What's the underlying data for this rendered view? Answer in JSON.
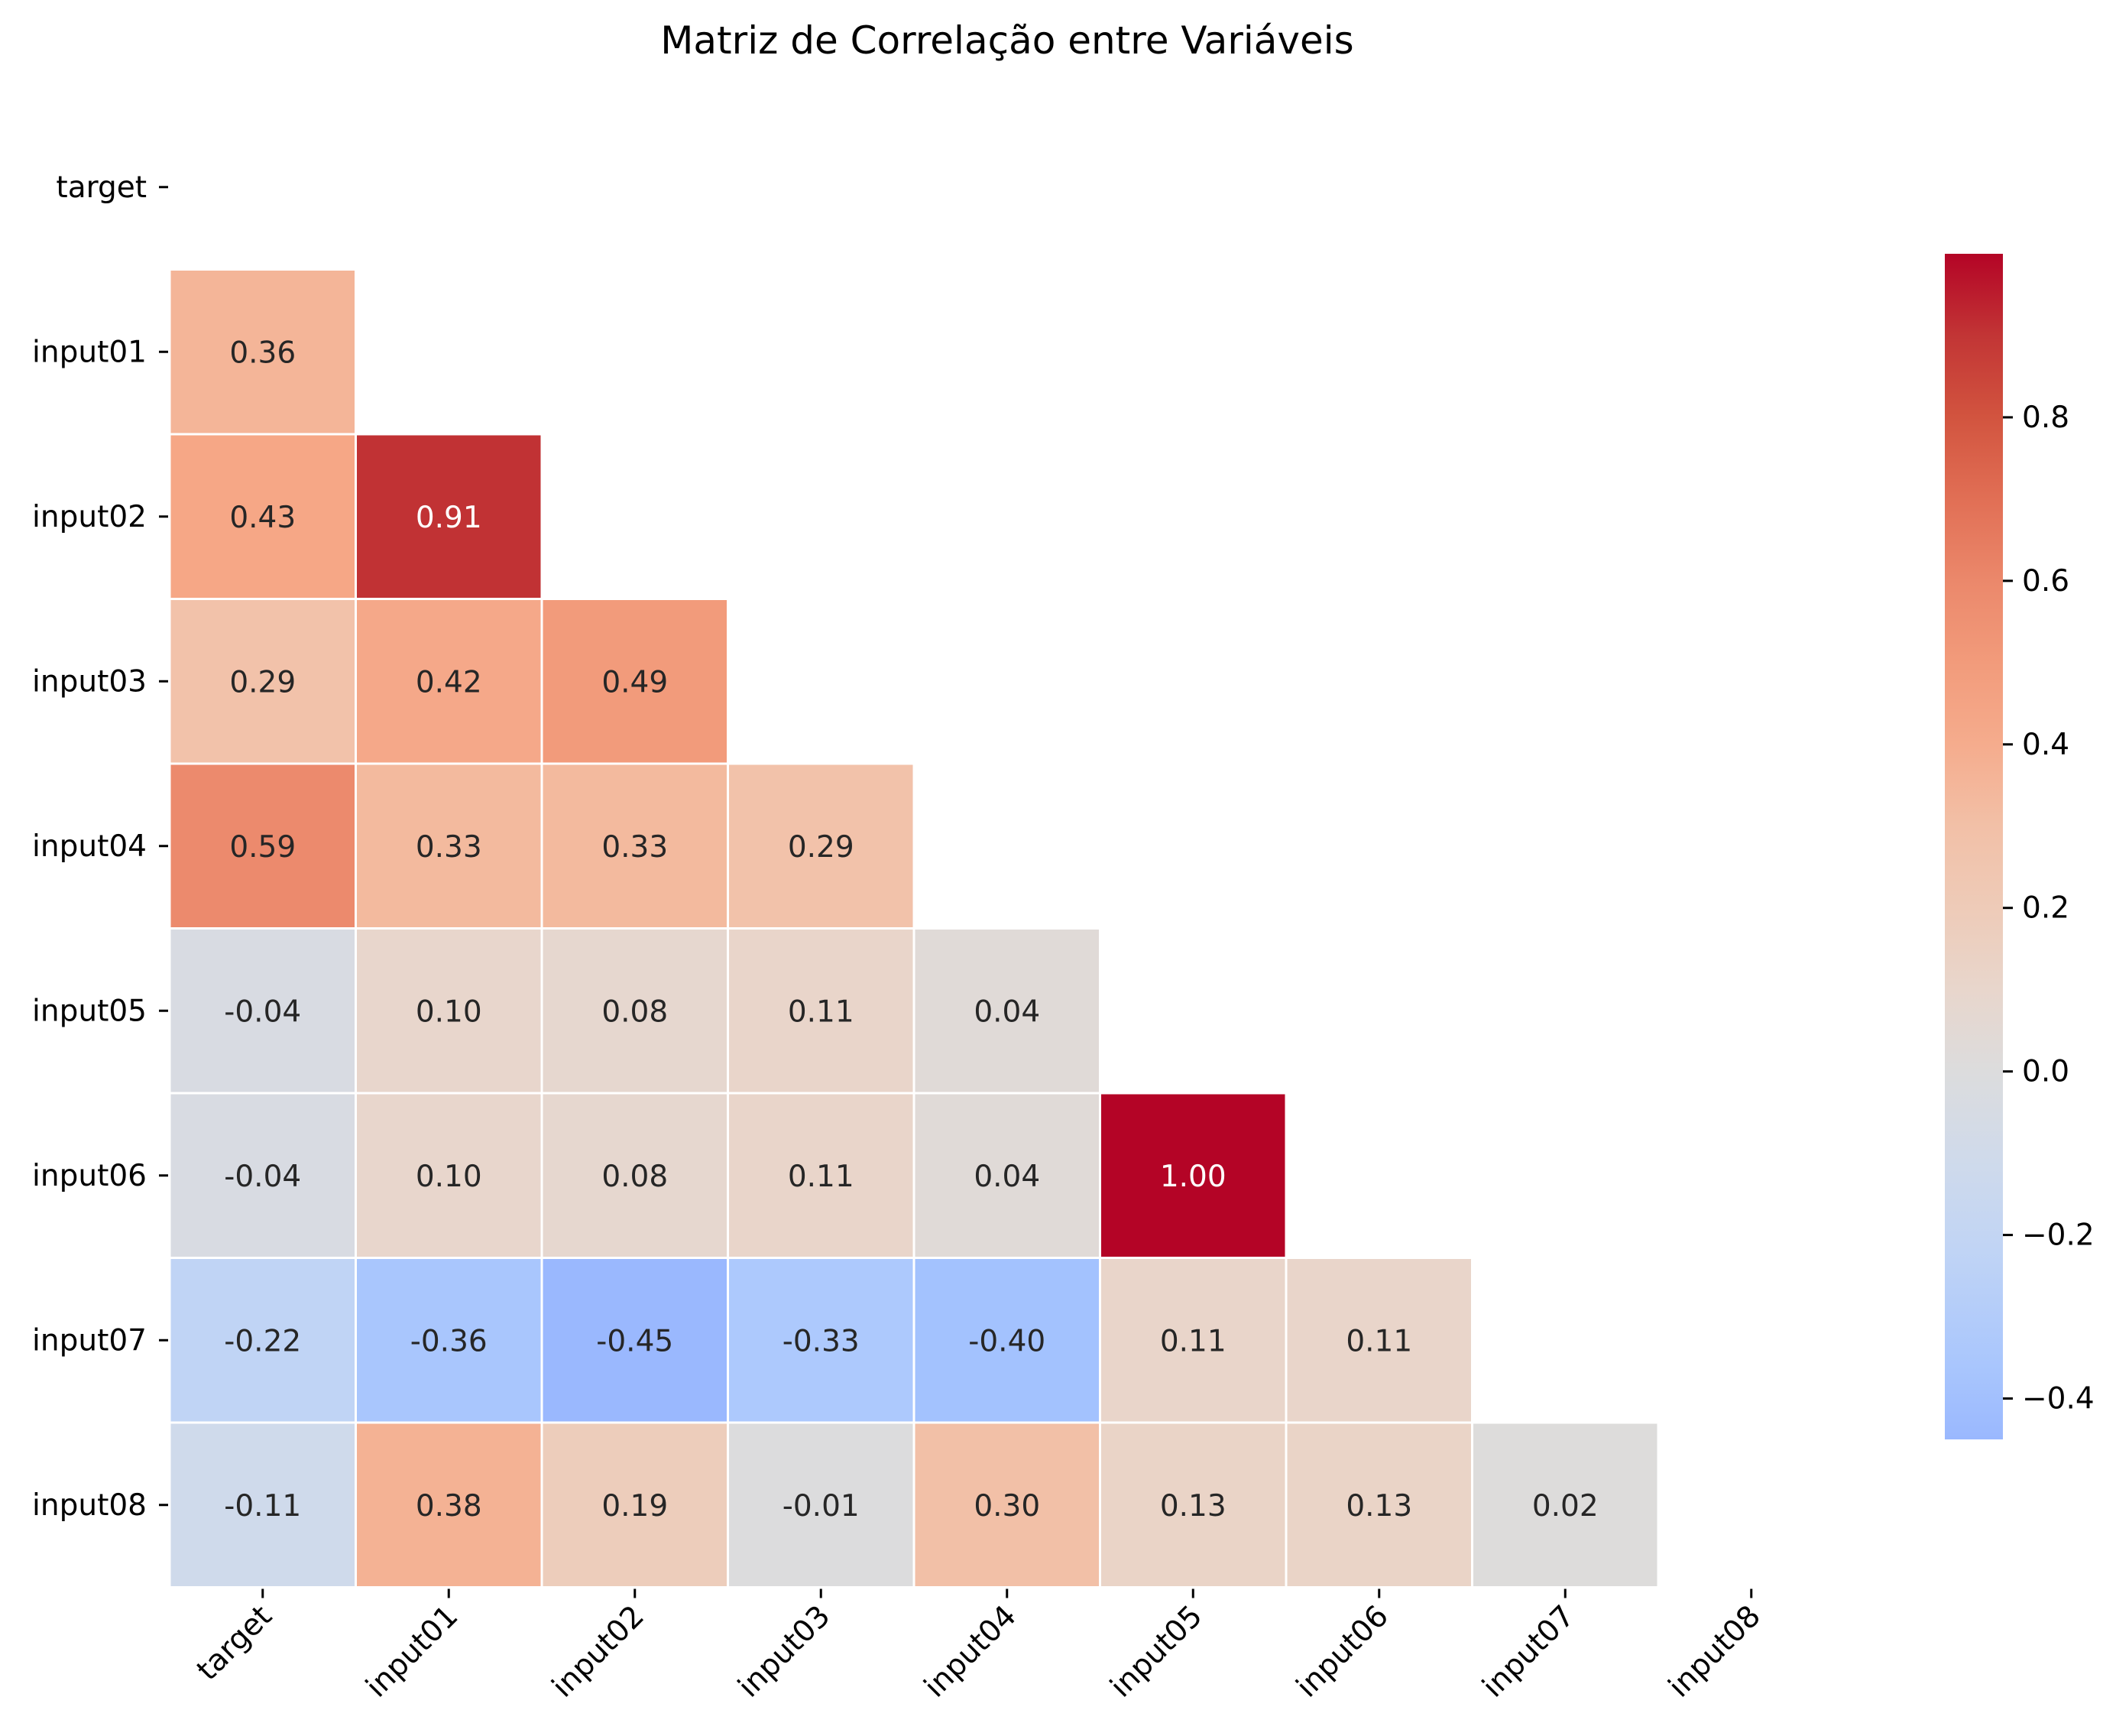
{
  "chart_data": {
    "type": "heatmap",
    "title": "Matriz de Correlação entre Variáveis",
    "xlabel": "",
    "ylabel": "",
    "categories": [
      "target",
      "input01",
      "input02",
      "input03",
      "input04",
      "input05",
      "input06",
      "input07",
      "input08"
    ],
    "mask": "upper-triangle-including-diagonal",
    "colormap": "coolwarm",
    "cells": [
      {
        "row": 1,
        "col": 0,
        "value": 0.36,
        "label": "0.36",
        "color": "#f4b598"
      },
      {
        "row": 2,
        "col": 0,
        "value": 0.43,
        "label": "0.43",
        "color": "#f6a786"
      },
      {
        "row": 2,
        "col": 1,
        "value": 0.91,
        "label": "0.91",
        "color": "#c13234"
      },
      {
        "row": 3,
        "col": 0,
        "value": 0.29,
        "label": "0.29",
        "color": "#f2c2aa"
      },
      {
        "row": 3,
        "col": 1,
        "value": 0.42,
        "label": "0.42",
        "color": "#f5a889"
      },
      {
        "row": 3,
        "col": 2,
        "value": 0.49,
        "label": "0.49",
        "color": "#f29b7b"
      },
      {
        "row": 4,
        "col": 0,
        "value": 0.59,
        "label": "0.59",
        "color": "#ec8a6d"
      },
      {
        "row": 4,
        "col": 1,
        "value": 0.33,
        "label": "0.33",
        "color": "#f3ba9e"
      },
      {
        "row": 4,
        "col": 2,
        "value": 0.33,
        "label": "0.33",
        "color": "#f3ba9e"
      },
      {
        "row": 4,
        "col": 3,
        "value": 0.29,
        "label": "0.29",
        "color": "#f2c2aa"
      },
      {
        "row": 5,
        "col": 0,
        "value": -0.04,
        "label": "-0.04",
        "color": "#d8dbe2"
      },
      {
        "row": 5,
        "col": 1,
        "value": 0.1,
        "label": "0.10",
        "color": "#e8d6cc"
      },
      {
        "row": 5,
        "col": 2,
        "value": 0.08,
        "label": "0.08",
        "color": "#e6d7cf"
      },
      {
        "row": 5,
        "col": 3,
        "value": 0.11,
        "label": "0.11",
        "color": "#e9d5ca"
      },
      {
        "row": 5,
        "col": 4,
        "value": 0.04,
        "label": "0.04",
        "color": "#e0dad7"
      },
      {
        "row": 6,
        "col": 0,
        "value": -0.04,
        "label": "-0.04",
        "color": "#d8dbe2"
      },
      {
        "row": 6,
        "col": 1,
        "value": 0.1,
        "label": "0.10",
        "color": "#e8d6cc"
      },
      {
        "row": 6,
        "col": 2,
        "value": 0.08,
        "label": "0.08",
        "color": "#e6d7cf"
      },
      {
        "row": 6,
        "col": 3,
        "value": 0.11,
        "label": "0.11",
        "color": "#e9d5ca"
      },
      {
        "row": 6,
        "col": 4,
        "value": 0.04,
        "label": "0.04",
        "color": "#e0dad7"
      },
      {
        "row": 6,
        "col": 5,
        "value": 1.0,
        "label": "1.00",
        "color": "#b40426"
      },
      {
        "row": 7,
        "col": 0,
        "value": -0.22,
        "label": "-0.22",
        "color": "#c0d4f5"
      },
      {
        "row": 7,
        "col": 1,
        "value": -0.36,
        "label": "-0.36",
        "color": "#a9c6fd"
      },
      {
        "row": 7,
        "col": 2,
        "value": -0.45,
        "label": "-0.45",
        "color": "#9ab8fe"
      },
      {
        "row": 7,
        "col": 3,
        "value": -0.33,
        "label": "-0.33",
        "color": "#adc9fd"
      },
      {
        "row": 7,
        "col": 4,
        "value": -0.4,
        "label": "-0.40",
        "color": "#a3c2fe"
      },
      {
        "row": 7,
        "col": 5,
        "value": 0.11,
        "label": "0.11",
        "color": "#e9d5ca"
      },
      {
        "row": 7,
        "col": 6,
        "value": 0.11,
        "label": "0.11",
        "color": "#e9d5ca"
      },
      {
        "row": 8,
        "col": 0,
        "value": -0.11,
        "label": "-0.11",
        "color": "#cfdaeb"
      },
      {
        "row": 8,
        "col": 1,
        "value": 0.38,
        "label": "0.38",
        "color": "#f4b294"
      },
      {
        "row": 8,
        "col": 2,
        "value": 0.19,
        "label": "0.19",
        "color": "#edcdbb"
      },
      {
        "row": 8,
        "col": 3,
        "value": -0.01,
        "label": "-0.01",
        "color": "#dcdcdd"
      },
      {
        "row": 8,
        "col": 4,
        "value": 0.3,
        "label": "0.30",
        "color": "#f2c0a7"
      },
      {
        "row": 8,
        "col": 5,
        "value": 0.13,
        "label": "0.13",
        "color": "#ead4c7"
      },
      {
        "row": 8,
        "col": 6,
        "value": 0.13,
        "label": "0.13",
        "color": "#ead4c7"
      },
      {
        "row": 8,
        "col": 7,
        "value": 0.02,
        "label": "0.02",
        "color": "#dddcdb"
      }
    ],
    "colorbar": {
      "range": [
        -0.45,
        1.0
      ],
      "ticks": [
        {
          "value": 0.8,
          "label": "0.8"
        },
        {
          "value": 0.6,
          "label": "0.6"
        },
        {
          "value": 0.4,
          "label": "0.4"
        },
        {
          "value": 0.2,
          "label": "0.2"
        },
        {
          "value": 0.0,
          "label": "0.0"
        },
        {
          "value": -0.2,
          "label": "−0.2"
        },
        {
          "value": -0.4,
          "label": "−0.4"
        }
      ],
      "stops": [
        {
          "value": -0.45,
          "color": "#9ab8fe"
        },
        {
          "value": -0.36,
          "color": "#a9c6fd"
        },
        {
          "value": -0.22,
          "color": "#c0d4f5"
        },
        {
          "value": -0.11,
          "color": "#cfdaeb"
        },
        {
          "value": 0.0,
          "color": "#dcdcdd"
        },
        {
          "value": 0.1,
          "color": "#e8d6cc"
        },
        {
          "value": 0.2,
          "color": "#eecbb8"
        },
        {
          "value": 0.3,
          "color": "#f2c0a7"
        },
        {
          "value": 0.4,
          "color": "#f5ac8d"
        },
        {
          "value": 0.5,
          "color": "#f29b7b"
        },
        {
          "value": 0.6,
          "color": "#eb886b"
        },
        {
          "value": 0.7,
          "color": "#e16f55"
        },
        {
          "value": 0.8,
          "color": "#d2543f"
        },
        {
          "value": 0.9,
          "color": "#c23535"
        },
        {
          "value": 1.0,
          "color": "#b40426"
        }
      ]
    }
  }
}
